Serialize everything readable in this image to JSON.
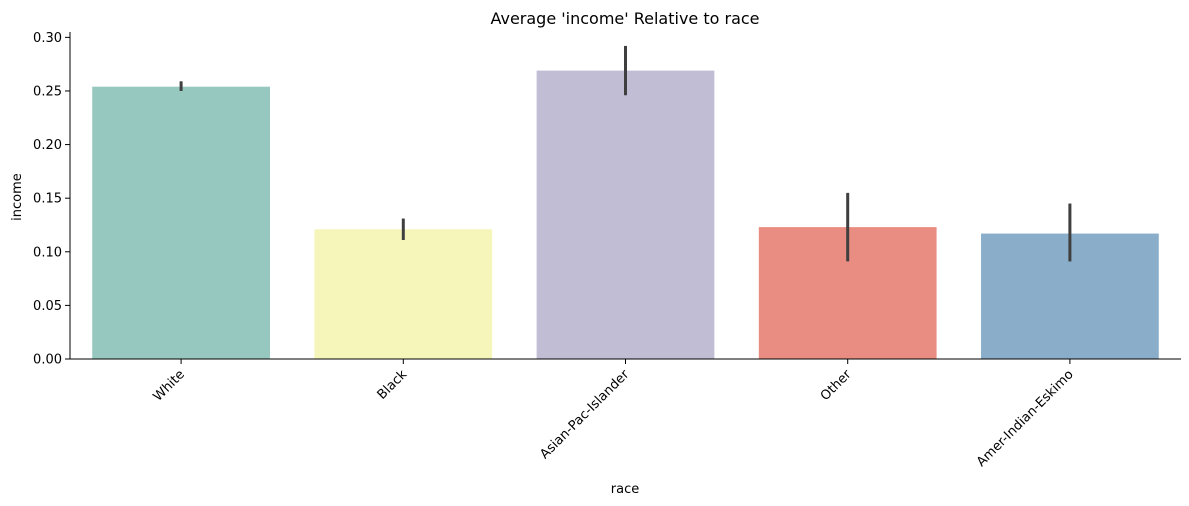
{
  "chart_data": {
    "type": "bar",
    "title": "Average 'income' Relative to race",
    "xlabel": "race",
    "ylabel": "income",
    "categories": [
      "White",
      "Black",
      "Asian-Pac-Islander",
      "Other",
      "Amer-Indian-Eskimo"
    ],
    "values": [
      0.254,
      0.121,
      0.269,
      0.123,
      0.117
    ],
    "error_low": [
      0.25,
      0.111,
      0.246,
      0.091,
      0.091
    ],
    "error_high": [
      0.259,
      0.131,
      0.292,
      0.155,
      0.145
    ],
    "colors": [
      "#96c8c0",
      "#f6f6bb",
      "#c1bdd5",
      "#e98c81",
      "#8aaec9"
    ],
    "ylim": [
      0,
      0.305
    ],
    "yticks": [
      "0.00",
      "0.05",
      "0.10",
      "0.15",
      "0.20",
      "0.25",
      "0.30"
    ],
    "grid": false,
    "legend": "none"
  }
}
